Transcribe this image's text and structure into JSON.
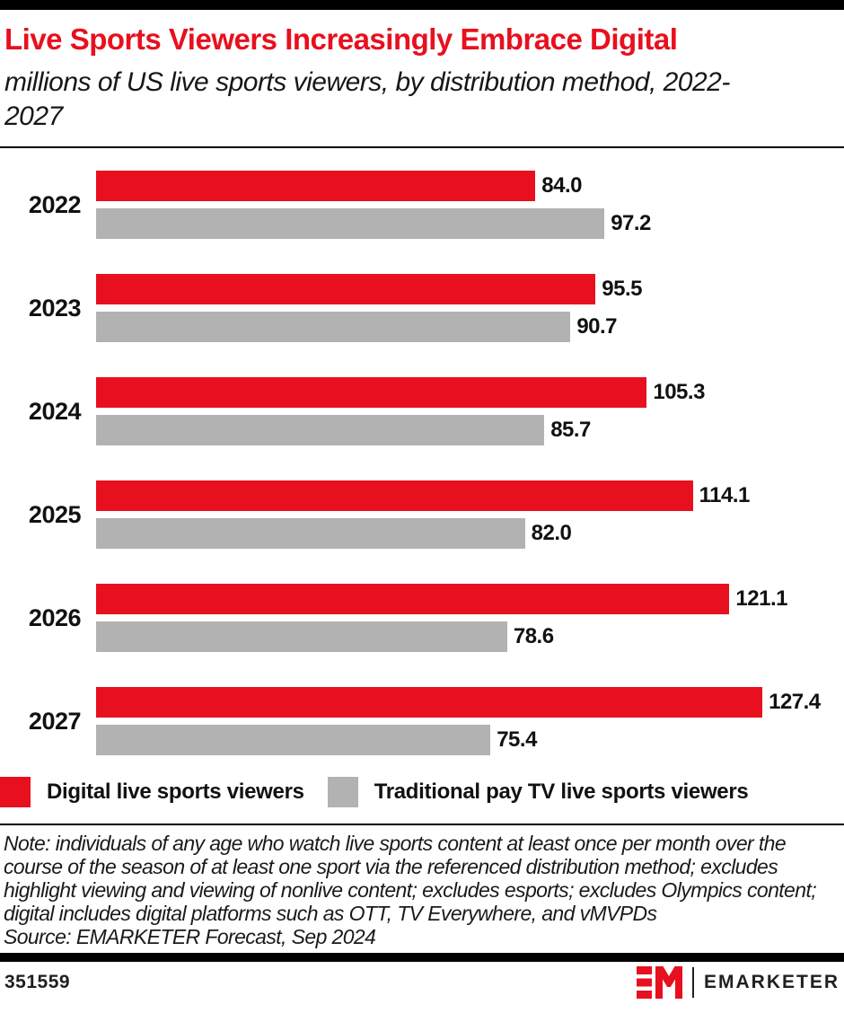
{
  "header": {
    "title": "Live Sports Viewers Increasingly Embrace Digital",
    "subtitle": "millions of US live sports viewers, by distribution method, 2022-2027"
  },
  "chart_data": {
    "type": "bar",
    "orientation": "horizontal",
    "title": "Live Sports Viewers Increasingly Embrace Digital",
    "subtitle": "millions of US live sports viewers, by distribution method, 2022-2027",
    "categories": [
      "2022",
      "2023",
      "2024",
      "2025",
      "2026",
      "2027"
    ],
    "series": [
      {
        "name": "Digital live sports viewers",
        "color": "#e8101e",
        "values": [
          84.0,
          95.5,
          105.3,
          114.1,
          121.1,
          127.4
        ]
      },
      {
        "name": "Traditional pay TV live sports viewers",
        "color": "#b2b2b2",
        "values": [
          97.2,
          90.7,
          85.7,
          82.0,
          78.6,
          75.4
        ]
      }
    ],
    "value_labels": "shown at bar end, one decimal",
    "unit": "millions",
    "xlim": [
      0,
      143
    ],
    "grid": false,
    "legend_position": "bottom"
  },
  "legend": {
    "items": [
      {
        "label": "Digital live sports viewers",
        "color": "#e8101e"
      },
      {
        "label": "Traditional pay TV live sports viewers",
        "color": "#b2b2b2"
      }
    ]
  },
  "footnote": {
    "note": "Note: individuals of any age who watch live sports content at least once per month over the course of the season of at least one sport via the referenced distribution method; excludes highlight viewing and viewing of nonlive content; excludes esports; excludes Olympics content; digital includes digital platforms such as OTT, TV Everywhere, and vMVPDs",
    "source": "Source: EMARKETER Forecast, Sep 2024"
  },
  "footer": {
    "chart_id": "351559",
    "brand": "EMARKETER"
  },
  "colors": {
    "accent_red": "#e8101e",
    "bar_gray": "#b2b2b2",
    "text_black": "#111111"
  }
}
